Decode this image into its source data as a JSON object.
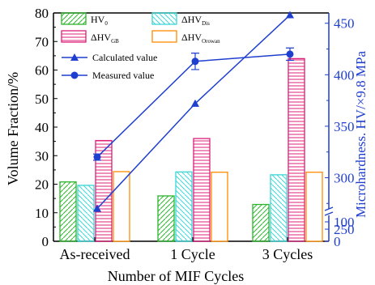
{
  "chart_data": {
    "type": "bar",
    "xlabel": "Number of MIF Cycles",
    "ylabel": "Volume Fraction/%",
    "y2label": "Microhardness. HV/×9.8 MPa",
    "categories": [
      "As-received",
      "1 Cycle",
      "3 Cycles"
    ],
    "ylim": [
      0,
      80
    ],
    "yticks": [
      "0",
      "10",
      "20",
      "30",
      "40",
      "50",
      "60",
      "70",
      "80"
    ],
    "y2_axis": {
      "break": true,
      "lower_range": [
        0,
        100
      ],
      "upper_range": [
        265,
        460
      ],
      "tick_labels": [
        "0",
        "100",
        "250",
        "300",
        "350",
        "400",
        "450"
      ]
    },
    "bar_series": [
      {
        "key": "hv0",
        "name": "HV",
        "sub": "0",
        "color": "#2db52d",
        "pattern": "diag",
        "values": [
          20.8,
          15.9,
          12.9
        ]
      },
      {
        "key": "dis",
        "name": "ΔHV",
        "sub": "Dis",
        "color": "#3dd6d6",
        "pattern": "back",
        "values": [
          19.6,
          24.3,
          23.3
        ]
      },
      {
        "key": "gb",
        "name": "ΔHV",
        "sub": "GB",
        "color": "#dd1f7a",
        "pattern": "horiz",
        "values": [
          35.3,
          36.0,
          64.0
        ]
      },
      {
        "key": "oro",
        "name": "ΔHV",
        "sub": "Orowan",
        "color": "#ff8c00",
        "pattern": "none",
        "values": [
          24.4,
          24.2,
          24.2
        ]
      }
    ],
    "line_series": [
      {
        "name": "Calculated value",
        "marker": "triangle",
        "color": "#1f3fcf",
        "values": [
          270,
          372,
          458
        ]
      },
      {
        "name": "Measured value",
        "marker": "circle",
        "color": "#1f3fcf",
        "values": [
          320,
          413,
          420
        ],
        "errors": [
          3,
          8,
          6
        ]
      }
    ],
    "legend_position": "top-left"
  }
}
